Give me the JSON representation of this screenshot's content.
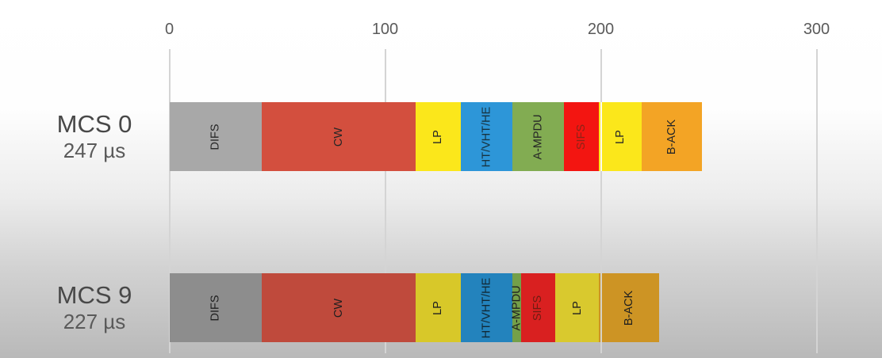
{
  "chart_data": {
    "type": "bar",
    "orientation": "horizontal",
    "stacked": true,
    "title": "",
    "xlabel": "",
    "x_unit": "µs",
    "x_ticks": [
      "0",
      "100",
      "200",
      "300"
    ],
    "xlim": [
      0,
      330
    ],
    "grid": "vertical-gridlines",
    "legend": "none",
    "colors": {
      "background_top": "#ffffff",
      "background_bottom": "#b9b9b9",
      "gridline": "#d4d4d4",
      "axis_text": "#5a5a5a",
      "row_label_text": "#484848"
    },
    "rows": [
      {
        "label": "MCS 0",
        "total_label": "247 µs",
        "total_us": 247,
        "segments": [
          {
            "name": "DIFS",
            "us": 43,
            "color": "#a8a8a8",
            "label_color": "#262626"
          },
          {
            "name": "CW",
            "us": 71,
            "color": "#d34f3e",
            "label_color": "#262626"
          },
          {
            "name": "LP",
            "us": 21,
            "color": "#fbe71b",
            "label_color": "#262626"
          },
          {
            "name": "HT/VHT/HE",
            "us": 24,
            "color": "#2d96d8",
            "label_color": "#17323f"
          },
          {
            "name": "A-MPDU",
            "us": 24,
            "color": "#82ac52",
            "label_color": "#262626"
          },
          {
            "name": "SIFS",
            "us": 16,
            "color": "#f31511",
            "label_color": "#8d2317"
          },
          {
            "name": "LP",
            "us": 20,
            "color": "#fbe71b",
            "label_color": "#262626"
          },
          {
            "name": "B-ACK",
            "us": 28,
            "color": "#f3a425",
            "label_color": "#262626"
          }
        ]
      },
      {
        "label": "MCS 9",
        "total_label": "227 µs",
        "total_us": 227,
        "segments": [
          {
            "name": "DIFS",
            "us": 43,
            "color": "#8d8d8d",
            "label_color": "#1f1f1f"
          },
          {
            "name": "CW",
            "us": 71,
            "color": "#bf4a3c",
            "label_color": "#1f1f1f"
          },
          {
            "name": "LP",
            "us": 21,
            "color": "#d8c829",
            "label_color": "#1f1f1f"
          },
          {
            "name": "HT/VHT/HE",
            "us": 24,
            "color": "#2383bd",
            "label_color": "#112835"
          },
          {
            "name": "A-MPDU",
            "us": 4,
            "color": "#74a049",
            "label_color": "#1f1f1f"
          },
          {
            "name": "SIFS",
            "us": 16,
            "color": "#d92020",
            "label_color": "#701c12"
          },
          {
            "name": "LP",
            "us": 20,
            "color": "#d9c92e",
            "label_color": "#1f1f1f"
          },
          {
            "name": "B-ACK",
            "us": 28,
            "color": "#cd9424",
            "label_color": "#1f1f1f"
          }
        ]
      }
    ]
  }
}
